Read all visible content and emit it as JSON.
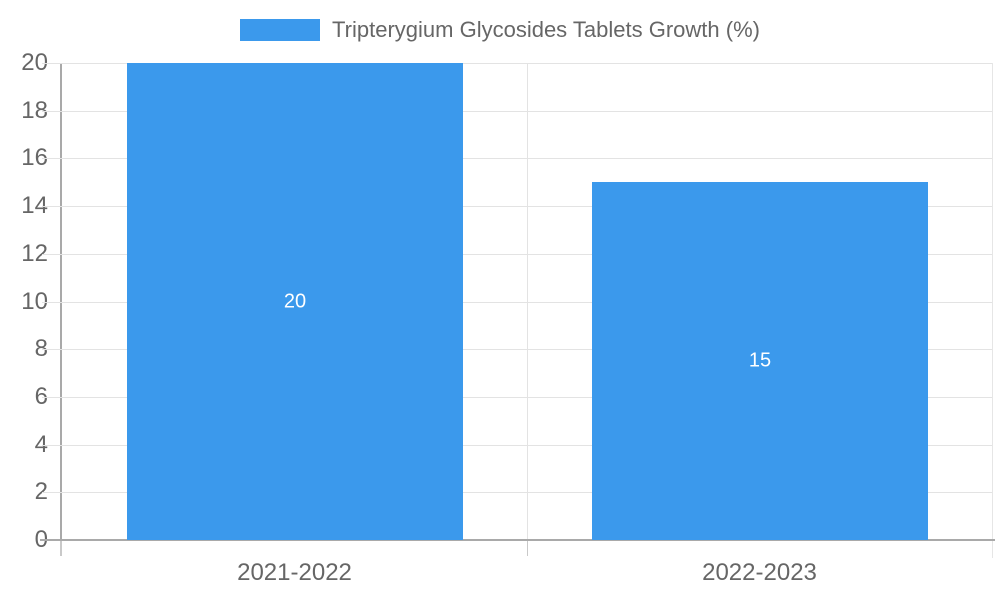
{
  "legend": {
    "position": "top"
  },
  "chart_data": {
    "type": "bar",
    "series_name": "Tripterygium Glycosides Tablets Growth (%)",
    "categories": [
      "2021-2022",
      "2022-2023"
    ],
    "values": [
      20,
      15
    ],
    "data_labels": [
      "20",
      "15"
    ],
    "title": "",
    "xlabel": "",
    "ylabel": "",
    "ylim": [
      0,
      20
    ],
    "ytick_step": 2,
    "grid": true,
    "legend_position": "top",
    "colors": {
      "bar": "#3B99EC",
      "bar_label_text": "#FFFFFF",
      "axis_text": "#666666",
      "gridline": "#E3E3E3",
      "axis_line": "#A9A9A9",
      "minor_tick": "#C9C9C9",
      "right_border": "#E6E6E6",
      "background": "#FFFFFF"
    }
  }
}
